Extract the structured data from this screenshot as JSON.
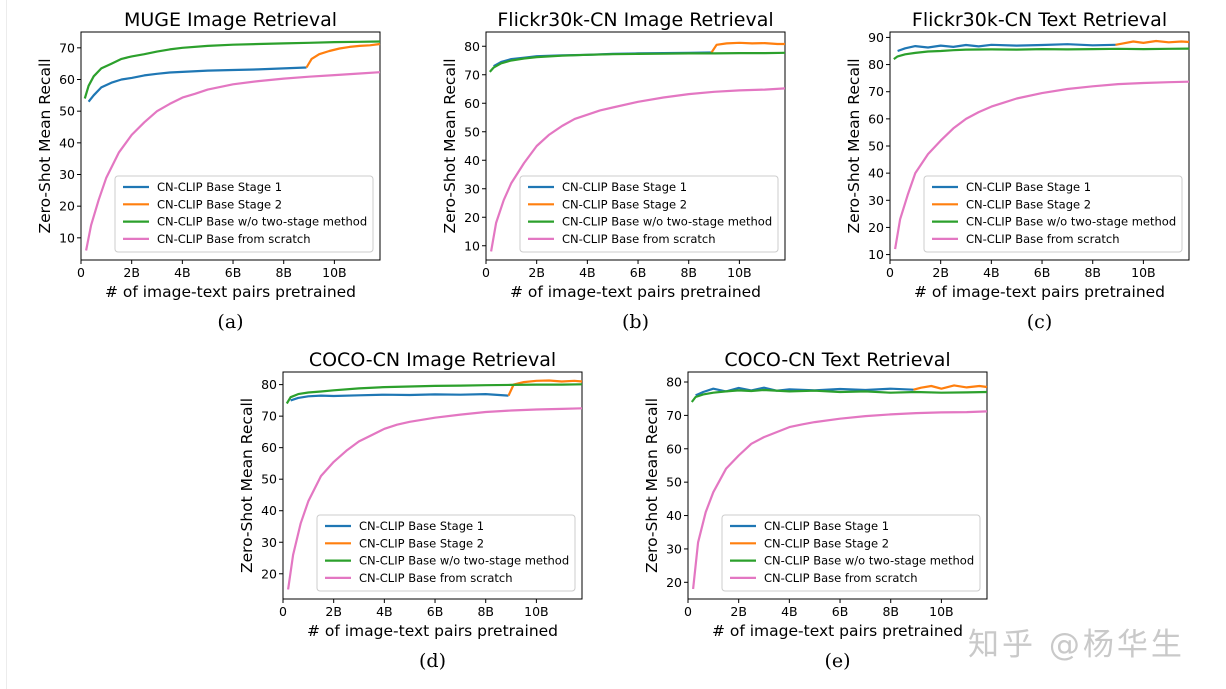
{
  "colors": {
    "stage1": "#1f77b4",
    "stage2": "#ff7f0e",
    "no_two_stage": "#2ca02c",
    "scratch": "#e377c2",
    "axis": "#000000",
    "watermark": "#c9c9c9"
  },
  "watermark": "知乎 @杨华生",
  "chart_data": [
    {
      "id": "a",
      "type": "line",
      "title": "MUGE Image Retrieval",
      "caption": "(a)",
      "xlabel": "# of image-text pairs pretrained",
      "ylabel": "Zero-Shot Mean Recall",
      "xlim": [
        0,
        11.8
      ],
      "ylim": [
        3,
        75
      ],
      "xticks": [
        0,
        2,
        4,
        6,
        8,
        10
      ],
      "xticklabels": [
        "0",
        "2B",
        "4B",
        "6B",
        "8B",
        "10B"
      ],
      "yticks": [
        10,
        20,
        30,
        40,
        50,
        60,
        70
      ],
      "yticklabels": [
        "10",
        "20",
        "30",
        "40",
        "50",
        "60",
        "70"
      ],
      "legend_position": "lower-right",
      "series": [
        {
          "name": "CN-CLIP Base Stage 1",
          "color_key": "stage1",
          "x": [
            0.3,
            0.5,
            0.8,
            1.2,
            1.6,
            2,
            2.5,
            3,
            3.5,
            4,
            5,
            6,
            7,
            8,
            8.9
          ],
          "y": [
            53,
            55,
            57.5,
            59,
            60,
            60.5,
            61.3,
            61.8,
            62.2,
            62.4,
            62.8,
            63,
            63.2,
            63.5,
            63.8
          ]
        },
        {
          "name": "CN-CLIP Base Stage 2",
          "color_key": "stage2",
          "x": [
            8.9,
            9.1,
            9.4,
            9.8,
            10.2,
            10.6,
            11,
            11.4,
            11.8
          ],
          "y": [
            63.8,
            66.5,
            68,
            69,
            69.8,
            70.3,
            70.6,
            70.8,
            71.2
          ]
        },
        {
          "name": "CN-CLIP Base w/o two-stage method",
          "color_key": "no_two_stage",
          "x": [
            0.15,
            0.3,
            0.5,
            0.8,
            1.2,
            1.6,
            2,
            2.5,
            3,
            3.5,
            4,
            5,
            6,
            7,
            8,
            9,
            10,
            11,
            11.8
          ],
          "y": [
            54,
            58,
            61,
            63.5,
            65,
            66.5,
            67.3,
            68,
            68.8,
            69.5,
            70,
            70.6,
            71,
            71.2,
            71.4,
            71.6,
            71.8,
            71.9,
            72
          ]
        },
        {
          "name": "CN-CLIP Base from scratch",
          "color_key": "scratch",
          "x": [
            0.2,
            0.4,
            0.7,
            1,
            1.5,
            2,
            2.5,
            3,
            3.5,
            4,
            4.5,
            5,
            6,
            7,
            8,
            9,
            10,
            11,
            11.8
          ],
          "y": [
            6,
            14,
            22,
            29,
            37,
            42.5,
            46.5,
            50,
            52.3,
            54.3,
            55.5,
            56.8,
            58.5,
            59.5,
            60.3,
            60.9,
            61.4,
            61.9,
            62.3
          ]
        }
      ]
    },
    {
      "id": "b",
      "type": "line",
      "title": "Flickr30k-CN Image Retrieval",
      "caption": "(b)",
      "xlabel": "# of image-text pairs pretrained",
      "ylabel": "Zero-Shot Mean Recall",
      "xlim": [
        0,
        11.8
      ],
      "ylim": [
        5,
        85
      ],
      "xticks": [
        0,
        2,
        4,
        6,
        8,
        10
      ],
      "xticklabels": [
        "0",
        "2B",
        "4B",
        "6B",
        "8B",
        "10B"
      ],
      "yticks": [
        10,
        20,
        30,
        40,
        50,
        60,
        70,
        80
      ],
      "yticklabels": [
        "10",
        "20",
        "30",
        "40",
        "50",
        "60",
        "70",
        "80"
      ],
      "legend_position": "lower-right",
      "series": [
        {
          "name": "CN-CLIP Base Stage 1",
          "color_key": "stage1",
          "x": [
            0.3,
            0.6,
            1,
            1.5,
            2,
            3,
            4,
            5,
            6,
            7,
            8,
            8.9
          ],
          "y": [
            73,
            74.5,
            75.5,
            76,
            76.5,
            76.8,
            77,
            77.3,
            77.5,
            77.6,
            77.7,
            77.8
          ]
        },
        {
          "name": "CN-CLIP Base Stage 2",
          "color_key": "stage2",
          "x": [
            8.9,
            9.1,
            9.5,
            10,
            10.5,
            11,
            11.5,
            11.8
          ],
          "y": [
            77.8,
            80.5,
            81,
            81.2,
            81,
            81.1,
            80.8,
            80.8
          ]
        },
        {
          "name": "CN-CLIP Base w/o two-stage method",
          "color_key": "no_two_stage",
          "x": [
            0.15,
            0.3,
            0.6,
            1,
            1.5,
            2,
            3,
            4,
            5,
            6,
            7,
            8,
            9,
            10,
            11,
            11.8
          ],
          "y": [
            71,
            72.5,
            74,
            75,
            75.7,
            76.2,
            76.7,
            77,
            77.2,
            77.3,
            77.4,
            77.5,
            77.5,
            77.6,
            77.6,
            77.7
          ]
        },
        {
          "name": "CN-CLIP Base from scratch",
          "color_key": "scratch",
          "x": [
            0.2,
            0.4,
            0.7,
            1,
            1.5,
            2,
            2.5,
            3,
            3.5,
            4,
            4.5,
            5,
            6,
            7,
            8,
            9,
            10,
            11,
            11.8
          ],
          "y": [
            8,
            18,
            26,
            32,
            39,
            45,
            49,
            52,
            54.5,
            56,
            57.5,
            58.5,
            60.5,
            62,
            63.2,
            64,
            64.5,
            64.8,
            65.2
          ]
        }
      ]
    },
    {
      "id": "c",
      "type": "line",
      "title": "Flickr30k-CN Text Retrieval",
      "caption": "(c)",
      "xlabel": "# of image-text pairs pretrained",
      "ylabel": "Zero-Shot Mean Recall",
      "xlim": [
        0,
        11.8
      ],
      "ylim": [
        8,
        92
      ],
      "xticks": [
        0,
        2,
        4,
        6,
        8,
        10
      ],
      "xticklabels": [
        "0",
        "2B",
        "4B",
        "6B",
        "8B",
        "10B"
      ],
      "yticks": [
        10,
        20,
        30,
        40,
        50,
        60,
        70,
        80,
        90
      ],
      "yticklabels": [
        "10",
        "20",
        "30",
        "40",
        "50",
        "60",
        "70",
        "80",
        "90"
      ],
      "legend_position": "lower-right",
      "series": [
        {
          "name": "CN-CLIP Base Stage 1",
          "color_key": "stage1",
          "x": [
            0.3,
            0.6,
            1,
            1.5,
            2,
            2.5,
            3,
            3.5,
            4,
            5,
            6,
            7,
            8,
            8.9
          ],
          "y": [
            85,
            86,
            86.8,
            86.3,
            87,
            86.5,
            87.2,
            86.7,
            87.3,
            87,
            87.2,
            87.5,
            87.1,
            87.3
          ]
        },
        {
          "name": "CN-CLIP Base Stage 2",
          "color_key": "stage2",
          "x": [
            8.9,
            9.2,
            9.6,
            10,
            10.5,
            11,
            11.5,
            11.8
          ],
          "y": [
            87.3,
            87.8,
            88.5,
            88,
            88.7,
            88.2,
            88.5,
            88.3
          ]
        },
        {
          "name": "CN-CLIP Base w/o two-stage method",
          "color_key": "no_two_stage",
          "x": [
            0.15,
            0.3,
            0.6,
            1,
            1.5,
            2,
            2.5,
            3,
            4,
            5,
            6,
            7,
            8,
            9,
            10,
            11,
            11.8
          ],
          "y": [
            82,
            83,
            83.8,
            84.3,
            84.8,
            85,
            85.3,
            85.5,
            85.6,
            85.5,
            85.7,
            85.6,
            85.7,
            85.8,
            85.7,
            85.8,
            85.9
          ]
        },
        {
          "name": "CN-CLIP Base from scratch",
          "color_key": "scratch",
          "x": [
            0.2,
            0.4,
            0.7,
            1,
            1.5,
            2,
            2.5,
            3,
            3.5,
            4,
            4.5,
            5,
            6,
            7,
            8,
            9,
            10,
            11,
            11.8
          ],
          "y": [
            12,
            23,
            32,
            40,
            47,
            52,
            56.5,
            60,
            62.5,
            64.5,
            66,
            67.5,
            69.5,
            71,
            72,
            72.8,
            73.2,
            73.5,
            73.7
          ]
        }
      ]
    },
    {
      "id": "d",
      "type": "line",
      "title": "COCO-CN Image Retrieval",
      "caption": "(d)",
      "xlabel": "# of image-text pairs pretrained",
      "ylabel": "Zero-Shot Mean Recall",
      "xlim": [
        0,
        11.8
      ],
      "ylim": [
        12,
        84
      ],
      "xticks": [
        0,
        2,
        4,
        6,
        8,
        10
      ],
      "xticklabels": [
        "0",
        "2B",
        "4B",
        "6B",
        "8B",
        "10B"
      ],
      "yticks": [
        20,
        30,
        40,
        50,
        60,
        70,
        80
      ],
      "yticklabels": [
        "20",
        "30",
        "40",
        "50",
        "60",
        "70",
        "80"
      ],
      "legend_position": "lower-right",
      "series": [
        {
          "name": "CN-CLIP Base Stage 1",
          "color_key": "stage1",
          "x": [
            0.3,
            0.6,
            1,
            1.5,
            2,
            3,
            4,
            5,
            6,
            7,
            8,
            8.9
          ],
          "y": [
            75,
            75.8,
            76.3,
            76.5,
            76.4,
            76.6,
            76.8,
            76.7,
            76.9,
            76.8,
            77,
            76.5
          ]
        },
        {
          "name": "CN-CLIP Base Stage 2",
          "color_key": "stage2",
          "x": [
            8.9,
            9.1,
            9.5,
            10,
            10.5,
            11,
            11.5,
            11.8
          ],
          "y": [
            76.5,
            80,
            80.8,
            81.2,
            81.3,
            81,
            81.2,
            81
          ]
        },
        {
          "name": "CN-CLIP Base w/o two-stage method",
          "color_key": "no_two_stage",
          "x": [
            0.15,
            0.3,
            0.6,
            1,
            1.5,
            2,
            3,
            4,
            5,
            6,
            7,
            8,
            9,
            10,
            11,
            11.8
          ],
          "y": [
            74,
            76,
            77,
            77.5,
            77.8,
            78.2,
            78.8,
            79.2,
            79.4,
            79.6,
            79.7,
            79.8,
            79.9,
            80,
            80,
            80.1
          ]
        },
        {
          "name": "CN-CLIP Base from scratch",
          "color_key": "scratch",
          "x": [
            0.2,
            0.4,
            0.7,
            1,
            1.5,
            2,
            2.5,
            3,
            3.5,
            4,
            4.5,
            5,
            6,
            7,
            8,
            9,
            10,
            11,
            11.8
          ],
          "y": [
            15,
            26,
            36,
            43,
            51,
            55.5,
            59,
            62,
            64,
            66,
            67.3,
            68.2,
            69.5,
            70.5,
            71.3,
            71.8,
            72.1,
            72.3,
            72.5
          ]
        }
      ]
    },
    {
      "id": "e",
      "type": "line",
      "title": "COCO-CN Text Retrieval",
      "caption": "(e)",
      "xlabel": "# of image-text pairs pretrained",
      "ylabel": "Zero-Shot Mean Recall",
      "xlim": [
        0,
        11.8
      ],
      "ylim": [
        15,
        83
      ],
      "xticks": [
        0,
        2,
        4,
        6,
        8,
        10
      ],
      "xticklabels": [
        "0",
        "2B",
        "4B",
        "6B",
        "8B",
        "10B"
      ],
      "yticks": [
        20,
        30,
        40,
        50,
        60,
        70,
        80
      ],
      "yticklabels": [
        "20",
        "30",
        "40",
        "50",
        "60",
        "70",
        "80"
      ],
      "legend_position": "lower-right",
      "series": [
        {
          "name": "CN-CLIP Base Stage 1",
          "color_key": "stage1",
          "x": [
            0.3,
            0.6,
            1,
            1.5,
            2,
            2.5,
            3,
            3.5,
            4,
            5,
            6,
            7,
            8,
            8.9
          ],
          "y": [
            76,
            77,
            78,
            77.2,
            78.2,
            77.5,
            78.3,
            77.4,
            77.8,
            77.5,
            77.9,
            77.6,
            78,
            77.7
          ]
        },
        {
          "name": "CN-CLIP Base Stage 2",
          "color_key": "stage2",
          "x": [
            8.9,
            9.2,
            9.6,
            10,
            10.5,
            11,
            11.5,
            11.8
          ],
          "y": [
            77.7,
            78.3,
            78.8,
            78,
            79,
            78.4,
            78.8,
            78.5
          ]
        },
        {
          "name": "CN-CLIP Base w/o two-stage method",
          "color_key": "no_two_stage",
          "x": [
            0.15,
            0.3,
            0.6,
            1,
            1.5,
            2,
            2.5,
            3,
            4,
            5,
            6,
            7,
            8,
            9,
            10,
            11,
            11.8
          ],
          "y": [
            74,
            75.5,
            76.3,
            76.8,
            77.2,
            77.5,
            77.3,
            77.6,
            77.2,
            77.4,
            77,
            77.2,
            76.8,
            77,
            76.8,
            76.9,
            77
          ]
        },
        {
          "name": "CN-CLIP Base from scratch",
          "color_key": "scratch",
          "x": [
            0.2,
            0.4,
            0.7,
            1,
            1.5,
            2,
            2.5,
            3,
            3.5,
            4,
            4.5,
            5,
            6,
            7,
            8,
            9,
            10,
            11,
            11.8
          ],
          "y": [
            18,
            32,
            41,
            47,
            54,
            58,
            61.5,
            63.5,
            65,
            66.5,
            67.3,
            68,
            69,
            69.8,
            70.3,
            70.7,
            70.9,
            71,
            71.2
          ]
        }
      ]
    }
  ]
}
